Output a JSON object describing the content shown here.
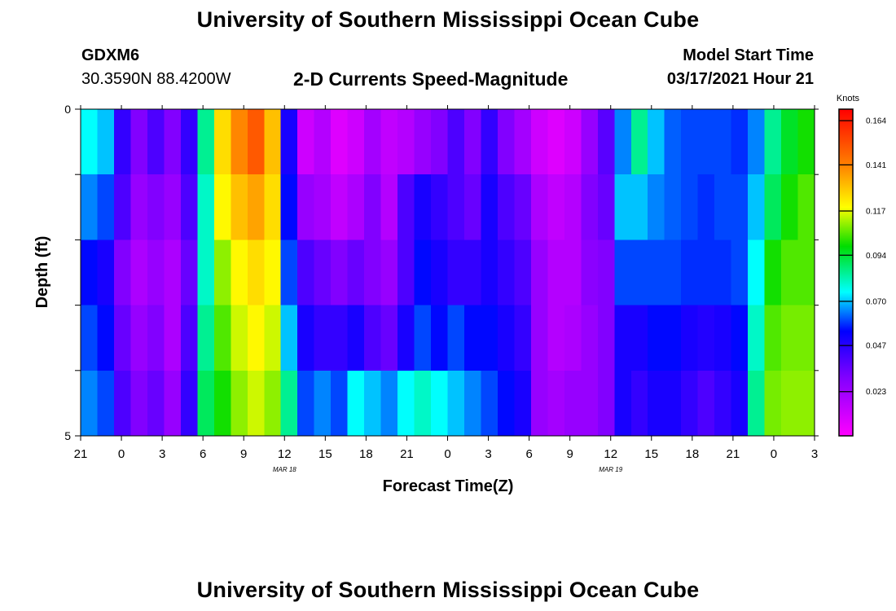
{
  "header": {
    "title": "University of Southern Mississippi Ocean Cube",
    "station_id": "GDXM6",
    "coordinates": "30.3590N 88.4200W",
    "plot_title": "2-D Currents Speed-Magnitude",
    "model_start_label": "Model Start Time",
    "model_start_value": "03/17/2021 Hour 21"
  },
  "footer": {
    "title": "University of Southern Mississippi Ocean Cube"
  },
  "chart_data": {
    "type": "heatmap",
    "title": "2-D Currents Speed-Magnitude",
    "xlabel": "Forecast Time(Z)",
    "ylabel": "Depth (ft)",
    "x_hours_range": [
      0,
      54
    ],
    "x_ticks": [
      {
        "h": 0,
        "label": "21"
      },
      {
        "h": 3,
        "label": "0"
      },
      {
        "h": 6,
        "label": "3"
      },
      {
        "h": 9,
        "label": "6"
      },
      {
        "h": 12,
        "label": "9"
      },
      {
        "h": 15,
        "label": "12"
      },
      {
        "h": 18,
        "label": "15"
      },
      {
        "h": 21,
        "label": "18"
      },
      {
        "h": 24,
        "label": "21"
      },
      {
        "h": 27,
        "label": "0"
      },
      {
        "h": 30,
        "label": "3"
      },
      {
        "h": 33,
        "label": "6"
      },
      {
        "h": 36,
        "label": "9"
      },
      {
        "h": 39,
        "label": "12"
      },
      {
        "h": 42,
        "label": "15"
      },
      {
        "h": 45,
        "label": "18"
      },
      {
        "h": 48,
        "label": "21"
      },
      {
        "h": 51,
        "label": "0"
      },
      {
        "h": 54,
        "label": "3"
      }
    ],
    "date_labels": [
      {
        "h": 15,
        "label": "MAR 18"
      },
      {
        "h": 39,
        "label": "MAR 19"
      }
    ],
    "y_range": [
      0,
      5
    ],
    "y_tick_values": [
      0,
      1,
      2,
      3,
      4,
      5
    ],
    "y_tick_labels": [
      {
        "v": 0,
        "label": "0"
      },
      {
        "v": 5,
        "label": "5"
      }
    ],
    "depth_layers": 5,
    "colorbar": {
      "title": "Knots",
      "range": [
        0,
        0.17
      ],
      "ticks": [
        0.164,
        0.141,
        0.117,
        0.094,
        0.07,
        0.047,
        0.023
      ]
    },
    "speed_knots_by_hour": [
      [
        0.075,
        0.065,
        0.055,
        0.06,
        0.065
      ],
      [
        0.07,
        0.06,
        0.05,
        0.055,
        0.06
      ],
      [
        0.045,
        0.04,
        0.03,
        0.035,
        0.04
      ],
      [
        0.03,
        0.025,
        0.02,
        0.025,
        0.03
      ],
      [
        0.04,
        0.03,
        0.025,
        0.03,
        0.035
      ],
      [
        0.03,
        0.025,
        0.02,
        0.02,
        0.025
      ],
      [
        0.045,
        0.04,
        0.035,
        0.04,
        0.045
      ],
      [
        0.085,
        0.08,
        0.08,
        0.085,
        0.09
      ],
      [
        0.125,
        0.12,
        0.11,
        0.105,
        0.1
      ],
      [
        0.14,
        0.13,
        0.12,
        0.115,
        0.11
      ],
      [
        0.15,
        0.135,
        0.125,
        0.12,
        0.115
      ],
      [
        0.13,
        0.125,
        0.12,
        0.115,
        0.11
      ],
      [
        0.05,
        0.055,
        0.06,
        0.07,
        0.085
      ],
      [
        0.012,
        0.025,
        0.04,
        0.05,
        0.06
      ],
      [
        0.018,
        0.022,
        0.035,
        0.045,
        0.065
      ],
      [
        0.008,
        0.015,
        0.03,
        0.045,
        0.06
      ],
      [
        0.012,
        0.02,
        0.035,
        0.05,
        0.075
      ],
      [
        0.022,
        0.03,
        0.03,
        0.04,
        0.07
      ],
      [
        0.015,
        0.018,
        0.025,
        0.035,
        0.065
      ],
      [
        0.018,
        0.04,
        0.04,
        0.05,
        0.075
      ],
      [
        0.025,
        0.05,
        0.055,
        0.06,
        0.08
      ],
      [
        0.03,
        0.045,
        0.05,
        0.055,
        0.075
      ],
      [
        0.04,
        0.04,
        0.045,
        0.06,
        0.07
      ],
      [
        0.03,
        0.035,
        0.045,
        0.055,
        0.065
      ],
      [
        0.045,
        0.05,
        0.05,
        0.055,
        0.06
      ],
      [
        0.03,
        0.04,
        0.045,
        0.05,
        0.055
      ],
      [
        0.022,
        0.035,
        0.04,
        0.045,
        0.05
      ],
      [
        0.012,
        0.02,
        0.025,
        0.025,
        0.025
      ],
      [
        0.008,
        0.015,
        0.018,
        0.018,
        0.022
      ],
      [
        0.012,
        0.018,
        0.018,
        0.02,
        0.025
      ],
      [
        0.025,
        0.03,
        0.028,
        0.025,
        0.025
      ],
      [
        0.038,
        0.035,
        0.03,
        0.03,
        0.03
      ],
      [
        0.065,
        0.07,
        0.06,
        0.05,
        0.05
      ],
      [
        0.085,
        0.07,
        0.06,
        0.05,
        0.045
      ],
      [
        0.07,
        0.065,
        0.06,
        0.055,
        0.05
      ],
      [
        0.062,
        0.062,
        0.06,
        0.055,
        0.05
      ],
      [
        0.06,
        0.06,
        0.058,
        0.05,
        0.045
      ],
      [
        0.06,
        0.058,
        0.058,
        0.048,
        0.04
      ],
      [
        0.06,
        0.06,
        0.058,
        0.05,
        0.045
      ],
      [
        0.058,
        0.06,
        0.06,
        0.055,
        0.05
      ],
      [
        0.065,
        0.07,
        0.075,
        0.08,
        0.085
      ],
      [
        0.085,
        0.09,
        0.1,
        0.105,
        0.108
      ],
      [
        0.095,
        0.1,
        0.105,
        0.108,
        0.11
      ],
      [
        0.1,
        0.105,
        0.105,
        0.108,
        0.11
      ]
    ]
  }
}
